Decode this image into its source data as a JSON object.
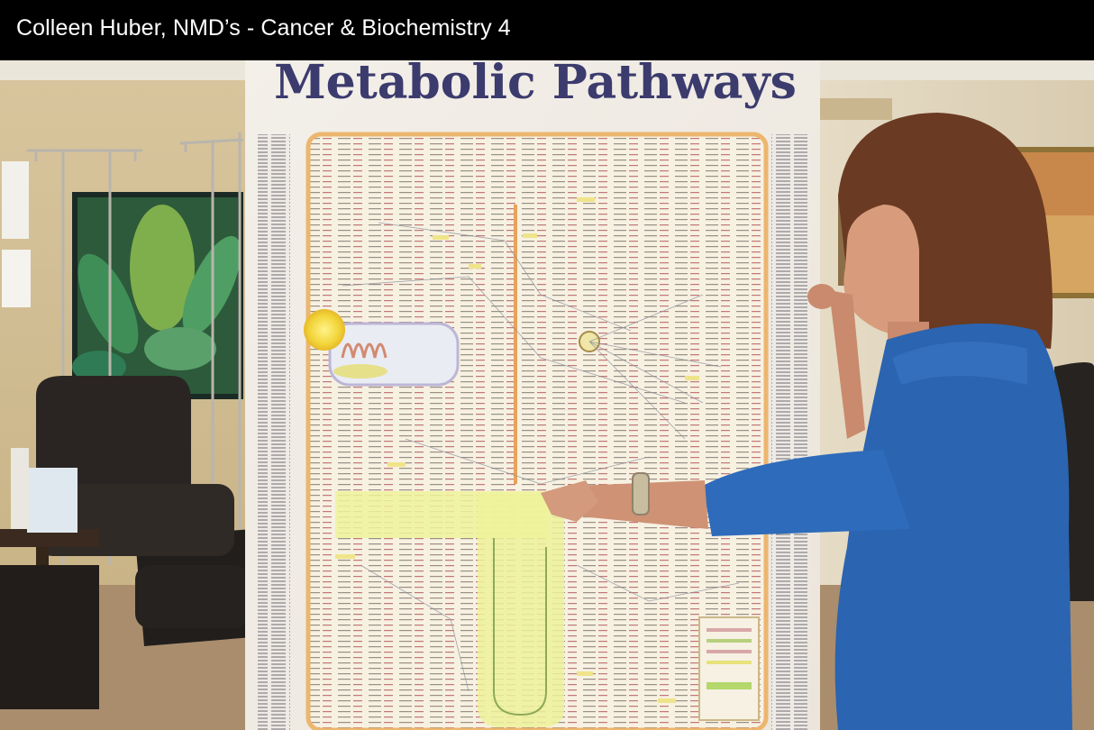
{
  "video": {
    "title": "Colleen Huber, NMD’s - Cancer & Biochemistry 4"
  },
  "poster": {
    "title": "Metabolic Pathways"
  }
}
